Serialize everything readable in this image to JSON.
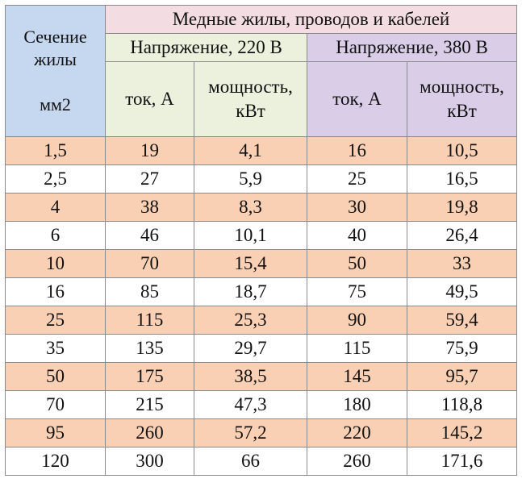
{
  "header": {
    "section_line1": "Сечение",
    "section_line2": "жилы",
    "section_unit": "мм2",
    "copper": "Медные жилы, проводов и кабелей",
    "v220": "Напряжение, 220 В",
    "v380": "Напряжение, 380 В",
    "current_label": "ток, А",
    "power_line1": "мощность,",
    "power_line2": "кВт"
  },
  "rows": [
    [
      "1,5",
      "19",
      "4,1",
      "16",
      "10,5"
    ],
    [
      "2,5",
      "27",
      "5,9",
      "25",
      "16,5"
    ],
    [
      "4",
      "38",
      "8,3",
      "30",
      "19,8"
    ],
    [
      "6",
      "46",
      "10,1",
      "40",
      "26,4"
    ],
    [
      "10",
      "70",
      "15,4",
      "50",
      "33"
    ],
    [
      "16",
      "85",
      "18,7",
      "75",
      "49,5"
    ],
    [
      "25",
      "115",
      "25,3",
      "90",
      "59,4"
    ],
    [
      "35",
      "135",
      "29,7",
      "115",
      "75,9"
    ],
    [
      "50",
      "175",
      "38,5",
      "145",
      "95,7"
    ],
    [
      "70",
      "215",
      "47,3",
      "180",
      "118,8"
    ],
    [
      "95",
      "260",
      "57,2",
      "220",
      "145,2"
    ],
    [
      "120",
      "300",
      "66",
      "260",
      "171,6"
    ]
  ],
  "colors": {
    "section_header_bg": "#c6d7f0",
    "copper_header_bg": "#f3dde2",
    "v220_bg": "#ebf1dd",
    "v380_bg": "#d9cde8",
    "odd_row_bg": "#fad0b5",
    "even_row_bg": "#ffffff"
  }
}
